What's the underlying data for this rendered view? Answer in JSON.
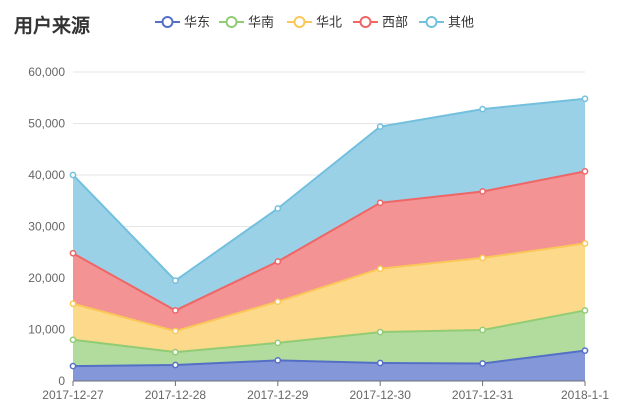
{
  "chart_data": {
    "type": "area",
    "stacked": true,
    "title": "用户来源",
    "categories": [
      "2017-12-27",
      "2017-12-28",
      "2017-12-29",
      "2017-12-30",
      "2017-12-31",
      "2018-1-1"
    ],
    "ylim": [
      0,
      60000
    ],
    "yticks": [
      0,
      10000,
      20000,
      30000,
      40000,
      50000,
      60000
    ],
    "ytick_labels": [
      "0",
      "10,000",
      "20,000",
      "30,000",
      "40,000",
      "50,000",
      "60,000"
    ],
    "grid": true,
    "legend_position": "top",
    "series": [
      {
        "name": "华东",
        "values": [
          2900,
          3100,
          4000,
          3500,
          3400,
          5900
        ],
        "color": "#5470c6",
        "fill": "#8497d8"
      },
      {
        "name": "华南",
        "values": [
          5100,
          2500,
          3400,
          6000,
          6500,
          7800
        ],
        "color": "#91cc75",
        "fill": "#b2dc9d"
      },
      {
        "name": "华北",
        "values": [
          7000,
          4100,
          8000,
          12300,
          14000,
          13000
        ],
        "color": "#fac858",
        "fill": "#fcd98b"
      },
      {
        "name": "西部",
        "values": [
          9800,
          4000,
          7800,
          12800,
          12900,
          14000
        ],
        "color": "#ee6666",
        "fill": "#f39393"
      },
      {
        "name": "其他",
        "values": [
          15200,
          5800,
          10300,
          14800,
          16000,
          14100
        ],
        "color": "#73c0de",
        "fill": "#9bd1e7"
      }
    ]
  }
}
